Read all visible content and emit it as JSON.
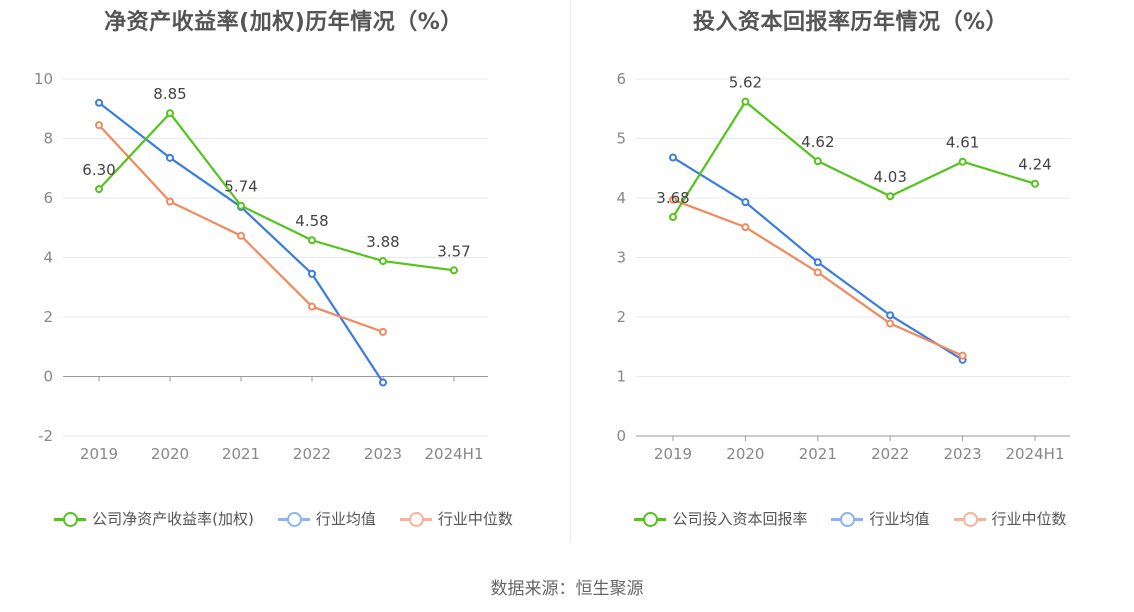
{
  "charts": [
    {
      "id": "roe",
      "chart_data": {
        "type": "line",
        "title": "净资产收益率(加权)历年情况（%）",
        "categories": [
          "2019",
          "2020",
          "2021",
          "2022",
          "2023",
          "2024H1"
        ],
        "ylim": [
          -2,
          10
        ],
        "yticks": [
          -2,
          0,
          2,
          4,
          6,
          8,
          10
        ],
        "series": [
          {
            "name": "公司净资产收益率(加权)",
            "color": "#52c41a",
            "labeled": true,
            "values": [
              6.3,
              8.85,
              5.74,
              4.58,
              3.88,
              3.57
            ],
            "labels": [
              "6.30",
              "8.85",
              "5.74",
              "4.58",
              "3.88",
              "3.57"
            ]
          },
          {
            "name": "行业均值",
            "color": "#3b7ddd",
            "labeled": false,
            "values": [
              9.2,
              7.35,
              5.7,
              3.45,
              -0.2,
              null
            ]
          },
          {
            "name": "行业中位数",
            "color": "#f08a5d",
            "labeled": false,
            "values": [
              8.45,
              5.88,
              4.73,
              2.35,
              1.5,
              null
            ]
          }
        ]
      }
    },
    {
      "id": "roic",
      "chart_data": {
        "type": "line",
        "title": "投入资本回报率历年情况（%）",
        "categories": [
          "2019",
          "2020",
          "2021",
          "2022",
          "2023",
          "2024H1"
        ],
        "ylim": [
          0,
          6
        ],
        "yticks": [
          0,
          1,
          2,
          3,
          4,
          5,
          6
        ],
        "series": [
          {
            "name": "公司投入资本回报率",
            "color": "#52c41a",
            "labeled": true,
            "values": [
              3.68,
              5.62,
              4.62,
              4.03,
              4.61,
              4.24
            ],
            "labels": [
              "3.68",
              "5.62",
              "4.62",
              "4.03",
              "4.61",
              "4.24"
            ]
          },
          {
            "name": "行业均值",
            "color": "#3b7ddd",
            "labeled": false,
            "values": [
              4.68,
              3.93,
              2.92,
              2.03,
              1.28,
              null
            ]
          },
          {
            "name": "行业中位数",
            "color": "#f08a5d",
            "labeled": false,
            "values": [
              3.97,
              3.51,
              2.75,
              1.89,
              1.35,
              null
            ]
          }
        ]
      }
    }
  ],
  "legend_colors": {
    "company": "#52c41a",
    "avg": "#8fb3f0",
    "median": "#f7b29a"
  },
  "source": "数据来源：恒生聚源"
}
